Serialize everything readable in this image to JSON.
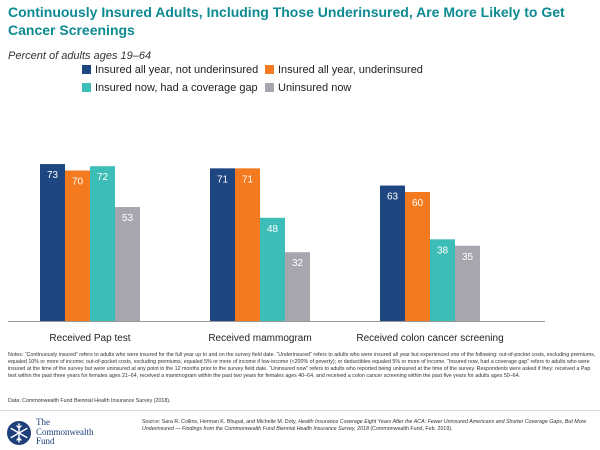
{
  "title": "Continuously Insured Adults, Including Those Underinsured, Are More Likely to Get Cancer Screenings",
  "subtitle": "Percent of adults ages 19–64",
  "chart_data": {
    "type": "bar",
    "title": "Continuously Insured Adults, Including Those Underinsured, Are More Likely to Get Cancer Screenings",
    "subtitle": "Percent of adults ages 19–64",
    "categories": [
      "Received Pap test",
      "Received mammogram",
      "Received colon cancer screening"
    ],
    "series": [
      {
        "name": "Insured all year, not underinsured",
        "color": "#1e4680",
        "values": [
          73,
          71,
          63
        ]
      },
      {
        "name": "Insured all year, underinsured",
        "color": "#f47a20",
        "values": [
          70,
          71,
          60
        ]
      },
      {
        "name": "Insured now, had a coverage gap",
        "color": "#3dbdb7",
        "values": [
          72,
          48,
          38
        ]
      },
      {
        "name": "Uninsured now",
        "color": "#a6a6ae",
        "values": [
          53,
          32,
          35
        ]
      }
    ],
    "ylim": [
      0,
      100
    ],
    "xlabel": "",
    "ylabel": "",
    "grid": false,
    "legend": "top",
    "data_labels": true
  },
  "notes": "Notes: “Continuously insured” refers to adults who were insured for the full year up to and on the survey field date. “Underinsured” refers to adults who were insured all year but experienced one of the following: out-of-pocket costs, excluding premiums, equaled 10% or more of income; out-of-pocket costs, excluding premiums, equaled 5% or more of income if low-income (<200% of poverty); or deductibles equaled 5% or more of income. “Insured now, had a coverage gap” refers to adults who were insured at the time of the survey but were uninsured at any point in the 12 months prior to the survey field date. “Uninsured now” refers to adults who reported being uninsured at the time of the survey. Respondents were asked if they: received a Pap test within the past three years for females ages 21–64, received a mammogram within the past two years for females ages 40–64, and received a colon cancer screening within the past five years for adults ages 50–64.",
  "data_note": "Data: Commonwealth Fund Biennial Health Insurance Survey (2018).",
  "source": {
    "prefix": "Source: Sara R. Collins, Herman K. Bhupal, and Michelle M. Doty, ",
    "title": "Health Insurance Coverage Eight Years After the ACA: Fewer Uninsured Americans and Shorter Coverage Gaps, But More Underinsured — Findings from the Commonwealth Fund Biennial Health Insurance Survey, 2018",
    "suffix": " (Commonwealth Fund, Feb. 2019)."
  },
  "logo": {
    "line1": "The",
    "line2": "Commonwealth",
    "line3": "Fund",
    "icon": "snowflake-seal-icon",
    "color": "#1d3f7a"
  }
}
